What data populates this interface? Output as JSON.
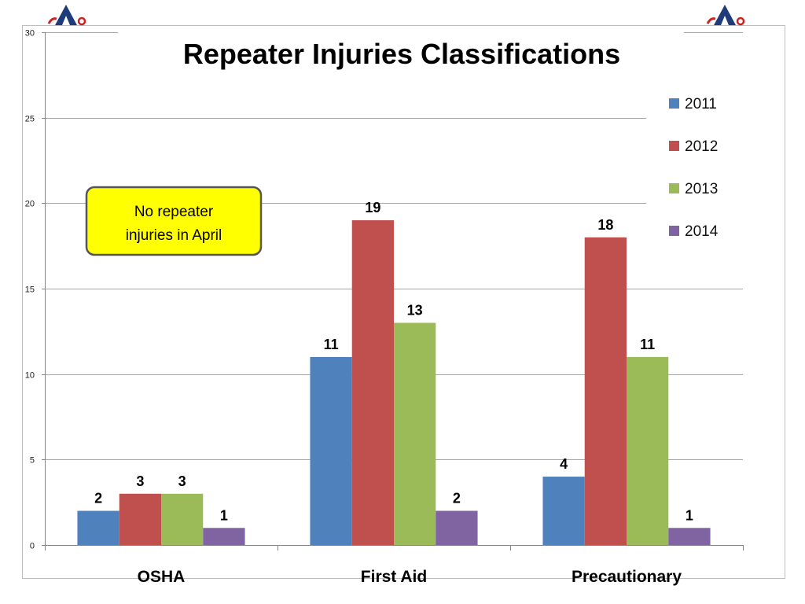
{
  "chart_data": {
    "type": "bar",
    "title": "Repeater Injuries Classifications",
    "xlabel": "",
    "ylabel": "",
    "categories": [
      "OSHA",
      "First Aid",
      "Precautionary"
    ],
    "series": [
      {
        "name": "2011",
        "values": [
          2,
          11,
          4
        ],
        "color": "#4f81bd"
      },
      {
        "name": "2012",
        "values": [
          3,
          19,
          18
        ],
        "color": "#c0504d"
      },
      {
        "name": "2013",
        "values": [
          3,
          13,
          11
        ],
        "color": "#9bbb59"
      },
      {
        "name": "2014",
        "values": [
          1,
          2,
          1
        ],
        "color": "#8064a2"
      }
    ],
    "ylim": [
      0,
      30
    ],
    "yticks": [
      0,
      5,
      10,
      15,
      20,
      25,
      30
    ],
    "grid": true,
    "legend": "right",
    "annotation": {
      "line1": "No repeater",
      "line2": "injuries in April",
      "fill": "#ffff00"
    }
  }
}
